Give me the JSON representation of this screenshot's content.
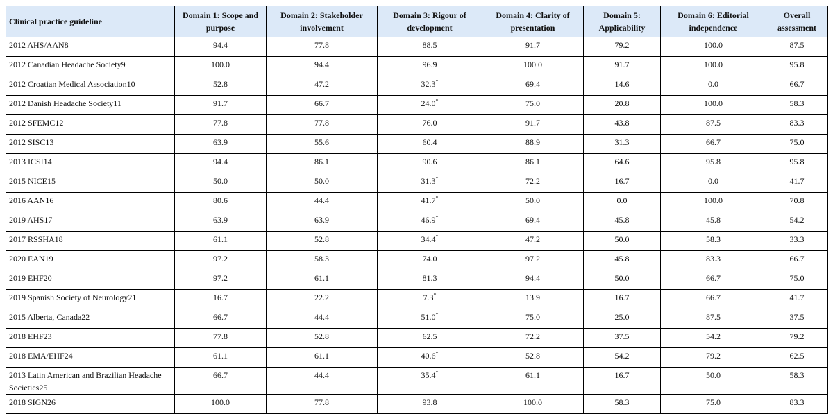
{
  "table": {
    "header": [
      "Clinical practice guideline",
      "Domain 1: Scope and purpose",
      "Domain 2: Stakeholder involvement",
      "Domain 3: Rigour of development",
      "Domain 4: Clarity of presentation",
      "Domain 5: Applicability",
      "Domain 6: Editorial independence",
      "Overall assessment"
    ],
    "rows": [
      [
        "2012 AHS/AAN8",
        "94.4",
        "77.8",
        "88.5",
        "91.7",
        "79.2",
        "100.0",
        "87.5"
      ],
      [
        "2012 Canadian Headache Society9",
        "100.0",
        "94.4",
        "96.9",
        "100.0",
        "91.7",
        "100.0",
        "95.8"
      ],
      [
        "2012 Croatian Medical Association10",
        "52.8",
        "47.2",
        {
          "text": "32.3",
          "sup": "*"
        },
        "69.4",
        "14.6",
        "0.0",
        "66.7"
      ],
      [
        "2012 Danish Headache Society11",
        "91.7",
        "66.7",
        {
          "text": "24.0",
          "sup": "*"
        },
        "75.0",
        "20.8",
        "100.0",
        "58.3"
      ],
      [
        "2012 SFEMC12",
        "77.8",
        "77.8",
        "76.0",
        "91.7",
        "43.8",
        "87.5",
        "83.3"
      ],
      [
        "2012 SISC13",
        "63.9",
        "55.6",
        "60.4",
        "88.9",
        "31.3",
        "66.7",
        "75.0"
      ],
      [
        "2013 ICSI14",
        "94.4",
        "86.1",
        "90.6",
        "86.1",
        "64.6",
        "95.8",
        "95.8"
      ],
      [
        "2015 NICE15",
        "50.0",
        "50.0",
        {
          "text": "31.3",
          "sup": "*"
        },
        "72.2",
        "16.7",
        "0.0",
        "41.7"
      ],
      [
        "2016 AAN16",
        "80.6",
        "44.4",
        {
          "text": "41.7",
          "sup": "*"
        },
        "50.0",
        "0.0",
        "100.0",
        "70.8"
      ],
      [
        "2019 AHS17",
        "63.9",
        "63.9",
        {
          "text": "46.9",
          "sup": "*"
        },
        "69.4",
        "45.8",
        "45.8",
        "54.2"
      ],
      [
        "2017 RSSHA18",
        "61.1",
        "52.8",
        {
          "text": "34.4",
          "sup": "*"
        },
        "47.2",
        "50.0",
        "58.3",
        "33.3"
      ],
      [
        "2020 EAN19",
        "97.2",
        "58.3",
        "74.0",
        "97.2",
        "45.8",
        "83.3",
        "66.7"
      ],
      [
        "2019 EHF20",
        "97.2",
        "61.1",
        "81.3",
        "94.4",
        "50.0",
        "66.7",
        "75.0"
      ],
      [
        "2019 Spanish Society of Neurology21",
        "16.7",
        "22.2",
        {
          "text": "7.3",
          "sup": "*"
        },
        "13.9",
        "16.7",
        "66.7",
        "41.7"
      ],
      [
        "2015 Alberta, Canada22",
        "66.7",
        "44.4",
        {
          "text": "51.0",
          "sup": "*"
        },
        "75.0",
        "25.0",
        "87.5",
        "37.5"
      ],
      [
        "2018 EHF23",
        "77.8",
        "52.8",
        "62.5",
        "72.2",
        "37.5",
        "54.2",
        "79.2"
      ],
      [
        "2018 EMA/EHF24",
        "61.1",
        "61.1",
        {
          "text": "40.6",
          "sup": "*"
        },
        "52.8",
        "54.2",
        "79.2",
        "62.5"
      ],
      [
        "2013 Latin American and Brazilian Headache Societies25",
        "66.7",
        "44.4",
        {
          "text": "35.4",
          "sup": "*"
        },
        "61.1",
        "16.7",
        "50.0",
        "58.3"
      ],
      [
        "2018 SIGN26",
        "100.0",
        "77.8",
        "93.8",
        "100.0",
        "58.3",
        "75.0",
        "83.3"
      ]
    ]
  }
}
